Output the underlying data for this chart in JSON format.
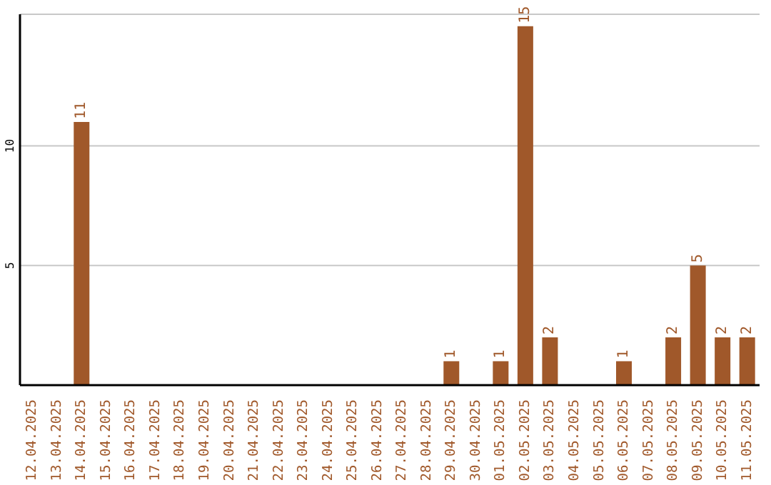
{
  "chart_data": {
    "type": "bar",
    "categories": [
      "12.04.2025",
      "13.04.2025",
      "14.04.2025",
      "15.04.2025",
      "16.04.2025",
      "17.04.2025",
      "18.04.2025",
      "19.04.2025",
      "20.04.2025",
      "21.04.2025",
      "22.04.2025",
      "23.04.2025",
      "24.04.2025",
      "25.04.2025",
      "26.04.2025",
      "27.04.2025",
      "28.04.2025",
      "29.04.2025",
      "30.04.2025",
      "01.05.2025",
      "02.05.2025",
      "03.05.2025",
      "04.05.2025",
      "05.05.2025",
      "06.05.2025",
      "07.05.2025",
      "08.05.2025",
      "09.05.2025",
      "10.05.2025",
      "11.05.2025"
    ],
    "values": [
      null,
      null,
      11,
      null,
      null,
      null,
      null,
      null,
      null,
      null,
      null,
      null,
      null,
      null,
      null,
      null,
      null,
      1,
      null,
      1,
      15,
      2,
      null,
      null,
      1,
      null,
      2,
      5,
      2,
      2
    ],
    "color": "#a0582a",
    "ylim": [
      0,
      15.5
    ],
    "yticks": [
      5,
      10
    ],
    "grid": "y",
    "data_labels": true
  }
}
